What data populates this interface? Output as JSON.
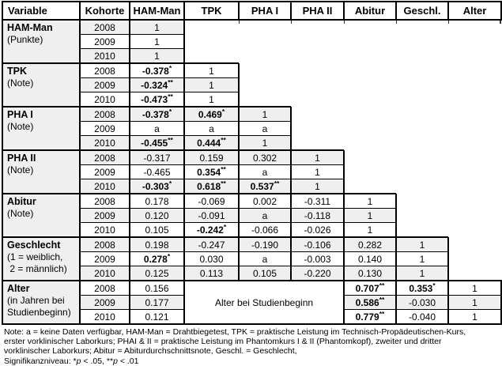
{
  "table": {
    "columns": [
      "Variable",
      "Kohorte",
      "HAM-Man",
      "TPK",
      "PHA I",
      "PHA II",
      "Abitur",
      "Geschl.",
      "Alter"
    ],
    "column_keys": [
      "variable",
      "kohorte",
      "ham-man",
      "tpk",
      "pha-i",
      "pha-ii",
      "abitur",
      "geschl",
      "alter"
    ],
    "shade_color": "#efefef",
    "alter_merged_label": "Alter bei Studienbeginn",
    "groups": [
      {
        "name": "HAM-Man",
        "sub": [
          "(Punkte)"
        ],
        "rows": [
          {
            "year": "2008",
            "shade": true,
            "cells": [
              {
                "t": "1"
              }
            ]
          },
          {
            "year": "2009",
            "shade": false,
            "cells": [
              {
                "t": "1"
              }
            ]
          },
          {
            "year": "2010",
            "shade": true,
            "cells": [
              {
                "t": "1"
              }
            ]
          }
        ]
      },
      {
        "name": "TPK",
        "sub": [
          "(Note)"
        ],
        "rows": [
          {
            "year": "2008",
            "shade": false,
            "cells": [
              {
                "t": "-0.378",
                "sup": "*",
                "b": true
              },
              {
                "t": "1"
              }
            ]
          },
          {
            "year": "2009",
            "shade": true,
            "cells": [
              {
                "t": "-0.324",
                "sup": "**",
                "b": true
              },
              {
                "t": "1"
              }
            ]
          },
          {
            "year": "2010",
            "shade": false,
            "cells": [
              {
                "t": "-0.473",
                "sup": "**",
                "b": true
              },
              {
                "t": "1"
              }
            ]
          }
        ]
      },
      {
        "name": "PHA I",
        "sub": [
          "(Note)"
        ],
        "rows": [
          {
            "year": "2008",
            "shade": true,
            "cells": [
              {
                "t": "-0.378",
                "sup": "*",
                "b": true
              },
              {
                "t": "0.469",
                "sup": "*",
                "b": true
              },
              {
                "t": "1"
              }
            ]
          },
          {
            "year": "2009",
            "shade": false,
            "cells": [
              {
                "t": "a"
              },
              {
                "t": "a"
              },
              {
                "t": "a"
              }
            ]
          },
          {
            "year": "2010",
            "shade": true,
            "cells": [
              {
                "t": "-0.455",
                "sup": "**",
                "b": true
              },
              {
                "t": "0.444",
                "sup": "**",
                "b": true
              },
              {
                "t": "1"
              }
            ]
          }
        ]
      },
      {
        "name": "PHA II",
        "sub": [
          "(Note)"
        ],
        "rows": [
          {
            "year": "2008",
            "shade": true,
            "cells": [
              {
                "t": "-0.317"
              },
              {
                "t": "0.159"
              },
              {
                "t": "0.302"
              },
              {
                "t": "1"
              }
            ]
          },
          {
            "year": "2009",
            "shade": false,
            "cells": [
              {
                "t": "-0.465"
              },
              {
                "t": "0.354",
                "sup": "**",
                "b": true
              },
              {
                "t": "a"
              },
              {
                "t": "1"
              }
            ]
          },
          {
            "year": "2010",
            "shade": true,
            "cells": [
              {
                "t": "-0.303",
                "sup": "*",
                "b": true
              },
              {
                "t": "0.618",
                "sup": "**",
                "b": true
              },
              {
                "t": "0.537",
                "sup": "**",
                "b": true
              },
              {
                "t": "1"
              }
            ]
          }
        ]
      },
      {
        "name": "Abitur",
        "sub": [
          "(Note)"
        ],
        "rows": [
          {
            "year": "2008",
            "shade": false,
            "cells": [
              {
                "t": "0.178"
              },
              {
                "t": "-0.069"
              },
              {
                "t": "0.002"
              },
              {
                "t": "-0.311"
              },
              {
                "t": "1"
              }
            ]
          },
          {
            "year": "2009",
            "shade": true,
            "cells": [
              {
                "t": "0.120"
              },
              {
                "t": "-0.091"
              },
              {
                "t": "a"
              },
              {
                "t": "-0.118"
              },
              {
                "t": "1"
              }
            ]
          },
          {
            "year": "2010",
            "shade": false,
            "cells": [
              {
                "t": "0.105"
              },
              {
                "t": "-0.242",
                "sup": "*",
                "b": true
              },
              {
                "t": "-0.066"
              },
              {
                "t": "-0.026"
              },
              {
                "t": "1"
              }
            ]
          }
        ]
      },
      {
        "name": "Geschlecht",
        "sub": [
          "(1 = weiblich,",
          " 2 = männlich)"
        ],
        "rows": [
          {
            "year": "2008",
            "shade": true,
            "cells": [
              {
                "t": "0.198"
              },
              {
                "t": "-0.247"
              },
              {
                "t": "-0.190"
              },
              {
                "t": "-0.106"
              },
              {
                "t": "0.282"
              },
              {
                "t": "1"
              }
            ]
          },
          {
            "year": "2009",
            "shade": false,
            "cells": [
              {
                "t": "0.278",
                "sup": "*",
                "b": true
              },
              {
                "t": "0.030"
              },
              {
                "t": "a"
              },
              {
                "t": "-0.003"
              },
              {
                "t": "0.140"
              },
              {
                "t": "1"
              }
            ]
          },
          {
            "year": "2010",
            "shade": true,
            "cells": [
              {
                "t": "0.125"
              },
              {
                "t": "0.113"
              },
              {
                "t": "0.105"
              },
              {
                "t": "-0.220"
              },
              {
                "t": "0.130"
              },
              {
                "t": "1"
              }
            ]
          }
        ]
      },
      {
        "name": "Alter",
        "sub": [
          "(in Jahren bei",
          "Studienbeginn)"
        ],
        "merged": {
          "after_index": 0,
          "colspan": 3
        },
        "rows": [
          {
            "year": "2008",
            "shade": false,
            "cells": [
              {
                "t": "0.156"
              },
              {
                "t": "0.707",
                "sup": "**",
                "b": true
              },
              {
                "t": "0.353",
                "sup": "*",
                "b": true
              },
              {
                "t": "1"
              }
            ]
          },
          {
            "year": "2009",
            "shade": true,
            "cells": [
              {
                "t": "0.177"
              },
              {
                "t": "0.586",
                "sup": "**",
                "b": true
              },
              {
                "t": "-0.030"
              },
              {
                "t": "1"
              }
            ]
          },
          {
            "year": "2010",
            "shade": false,
            "cells": [
              {
                "t": "0.121"
              },
              {
                "t": "0.779",
                "sup": "**",
                "b": true
              },
              {
                "t": "-0.040"
              },
              {
                "t": "1"
              }
            ]
          }
        ]
      }
    ]
  },
  "note": {
    "lines": [
      [
        {
          "t": "Note: a = keine Daten verfügbar, HAM-Man = Drahtbiegetest, TPK = praktische Leistung im Technisch-Propädeutischen-Kurs,"
        }
      ],
      [
        {
          "t": "erster vorklinischer Laborkurs; PHAI & II = praktische Leistung im Phantomkurs I & II (Phantomkopf), zweiter und dritter"
        }
      ],
      [
        {
          "t": "vorklinischer Laborkurs; Abitur = Abiturdurchschnittsnote, Geschl. = Geschlecht,"
        }
      ],
      [
        {
          "t": "Signifikanzniveau: *"
        },
        {
          "t": "p",
          "i": true
        },
        {
          "t": " < .05, **"
        },
        {
          "t": "p",
          "i": true
        },
        {
          "t": " < .01"
        }
      ]
    ]
  }
}
